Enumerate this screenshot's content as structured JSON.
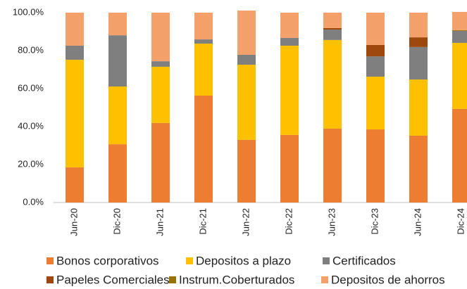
{
  "chart_data": {
    "type": "stacked_bar",
    "categories": [
      "Jun-20",
      "Dic-20",
      "Jun-21",
      "Dic-21",
      "Jun-22",
      "Dic-22",
      "Jun-23",
      "Dic-23",
      "Jun-24",
      "Dic-24"
    ],
    "series": [
      {
        "name": "Bonos corporativos",
        "color": "#ed7d31",
        "values": [
          18.5,
          30.7,
          41.9,
          56.3,
          33,
          35.6,
          38.9,
          38.5,
          35.2,
          49.3
        ]
      },
      {
        "name": "Depositos a plazo",
        "color": "#ffc000",
        "values": [
          56.7,
          30.4,
          29.6,
          27.4,
          39.6,
          47,
          46.7,
          27.8,
          29.6,
          34.8
        ]
      },
      {
        "name": "Certificados",
        "color": "#7f7f7f",
        "values": [
          7.4,
          27,
          2.9,
          2.2,
          5.2,
          4.1,
          5.5,
          10.7,
          17.1,
          6.3
        ]
      },
      {
        "name": "Papeles Comerciales",
        "color": "#9e480e",
        "values": [
          0,
          0,
          0,
          0,
          0,
          0,
          0.8,
          6,
          5.1,
          0
        ]
      },
      {
        "name": "Instrum.Coberturados",
        "color": "#997300",
        "values": [
          0,
          0,
          0,
          0,
          0,
          0,
          0,
          0,
          0,
          0.4
        ]
      },
      {
        "name": "Depositos de ahorros",
        "color": "#f4a06a",
        "values": [
          17.4,
          11.9,
          25.6,
          14.1,
          23.3,
          13.3,
          8.1,
          17,
          13,
          9.6
        ]
      }
    ],
    "ylim": [
      0,
      100
    ],
    "yticks": [
      {
        "value": 0,
        "label": "0.0%"
      },
      {
        "value": 20,
        "label": "20.0%"
      },
      {
        "value": 40,
        "label": "40.0%"
      },
      {
        "value": 60,
        "label": "60.0%"
      },
      {
        "value": 80,
        "label": "80.0%"
      },
      {
        "value": 100,
        "label": "100.0%"
      }
    ],
    "legend": "bottom"
  }
}
